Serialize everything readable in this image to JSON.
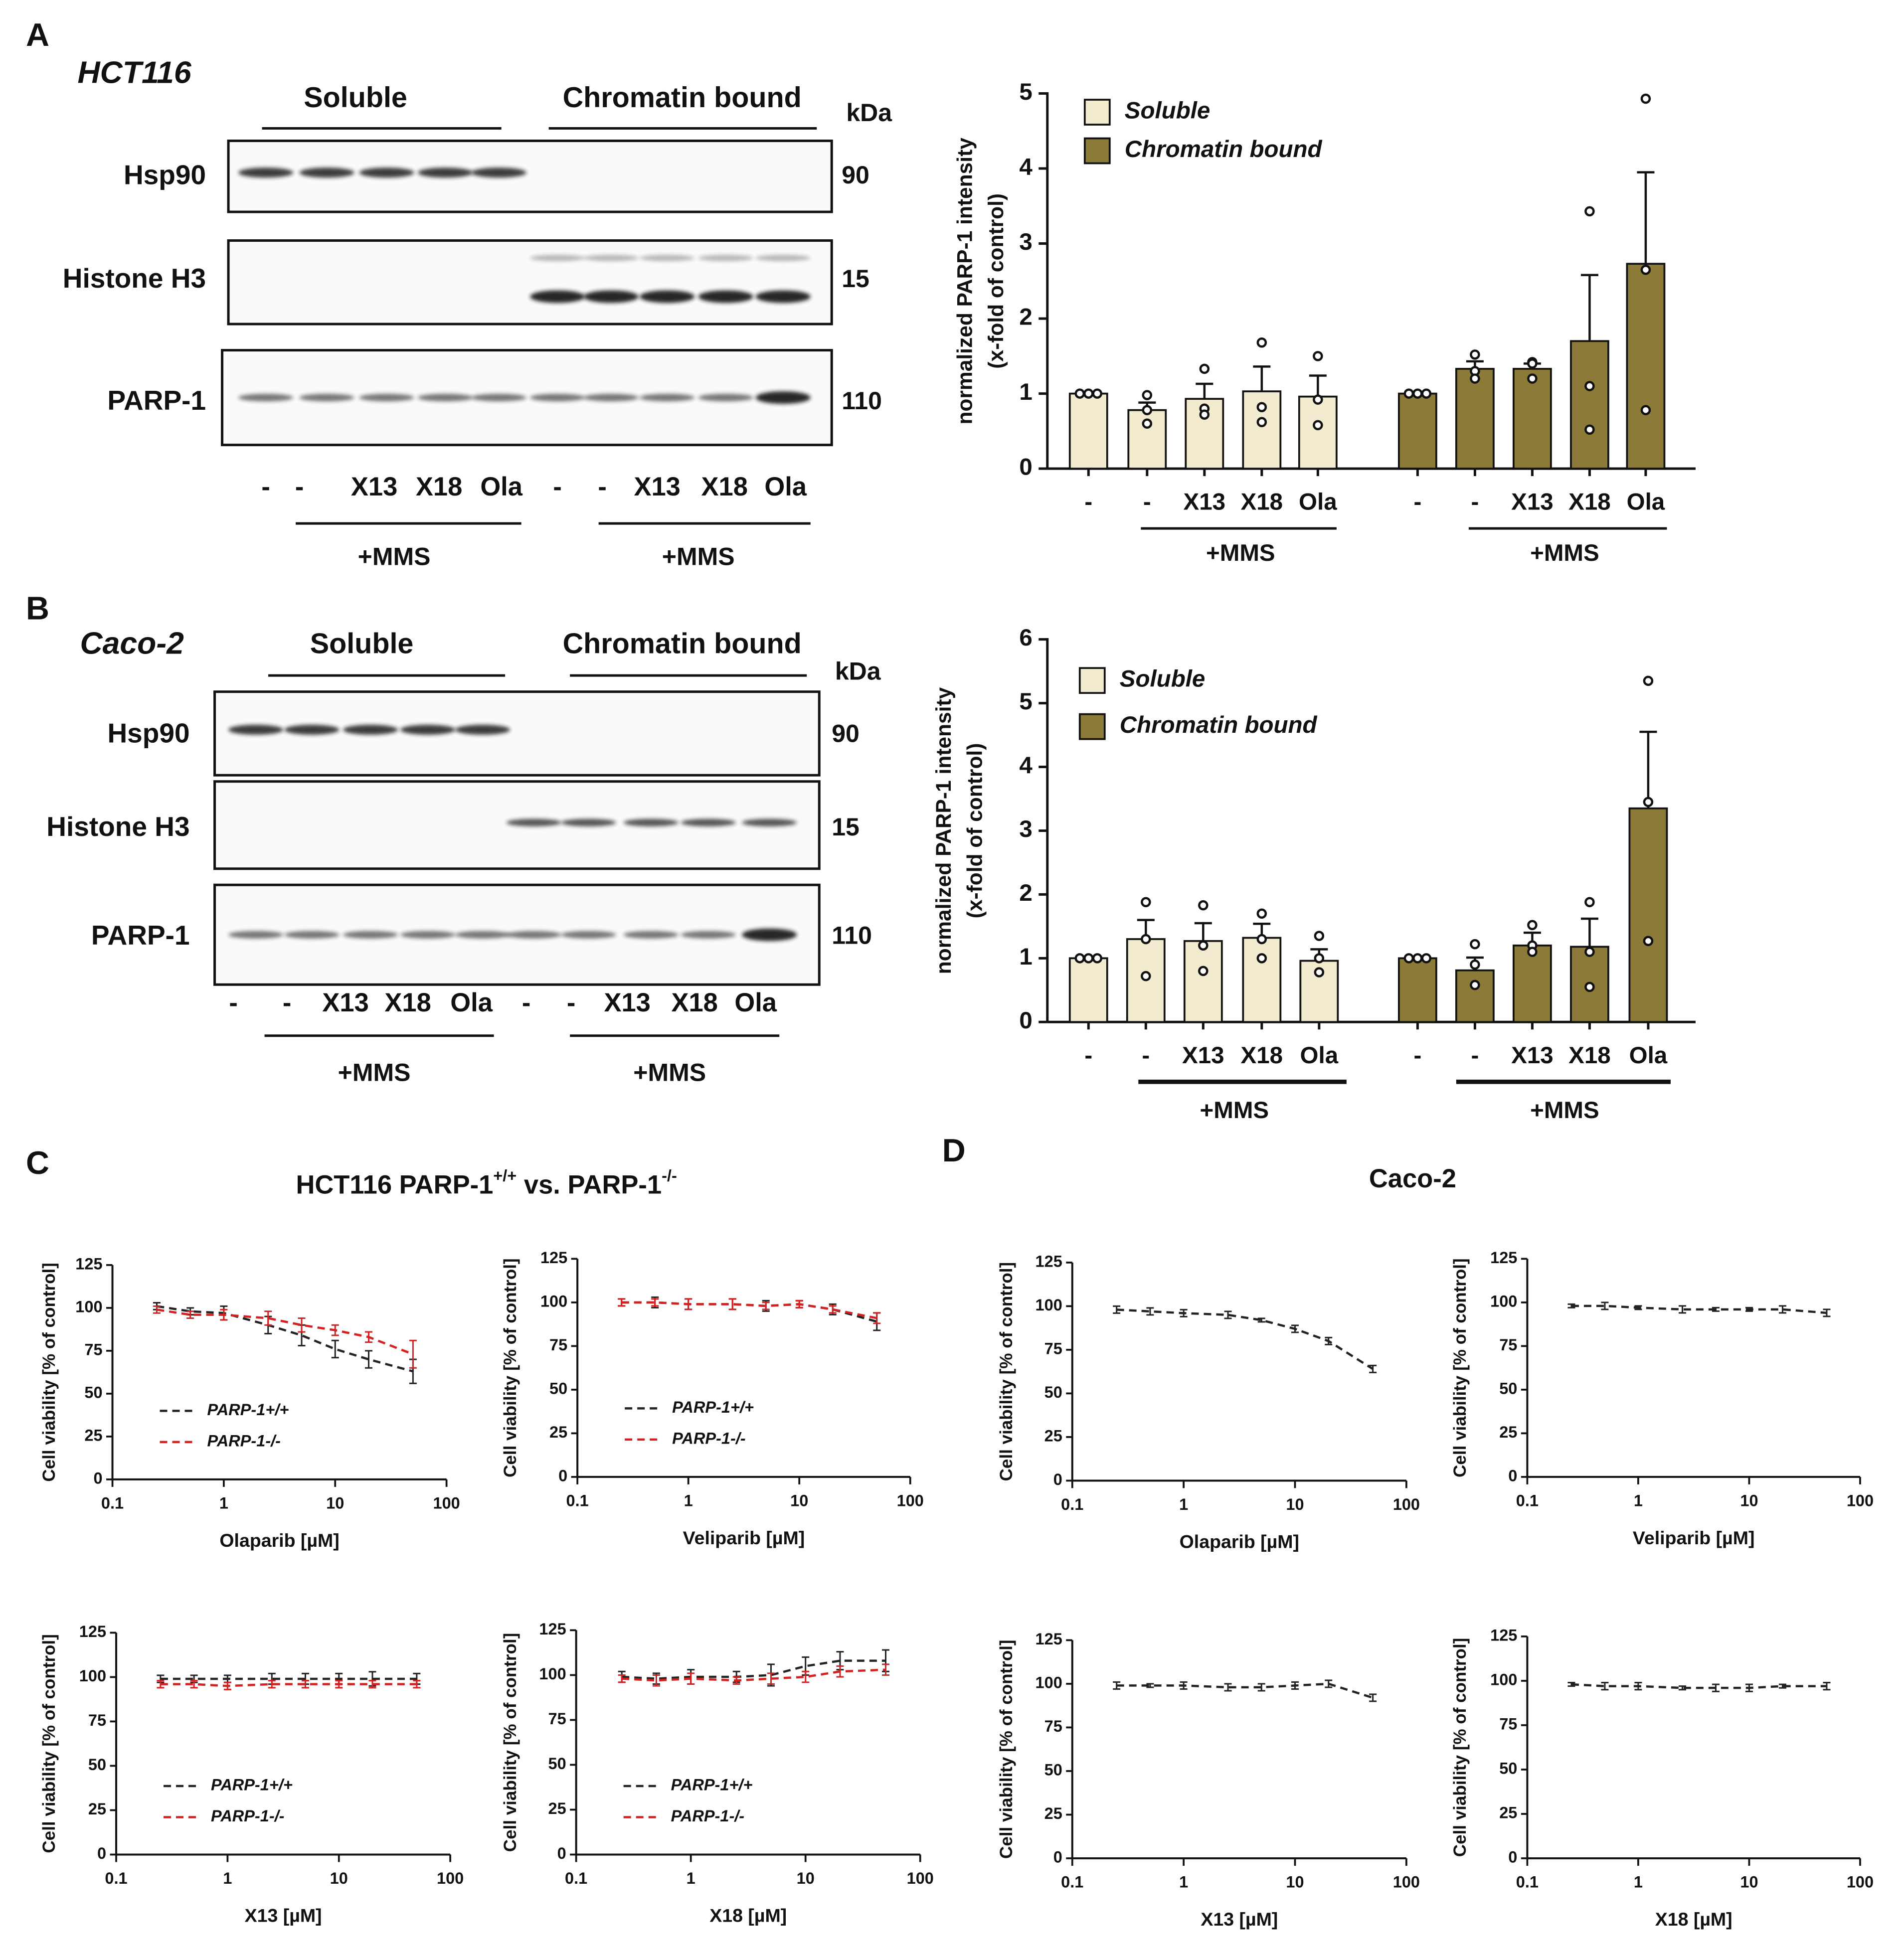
{
  "panel_labels": [
    "A",
    "B",
    "C",
    "D"
  ],
  "sections": [
    {
      "parts": [
        "HCT116 PARP-1",
        "+/+",
        " vs. PARP-1",
        "-/-"
      ]
    },
    {
      "parts": [
        "Caco-2"
      ]
    }
  ],
  "blots": [
    {
      "cell_line": "HCT116",
      "groups": [
        "Soluble",
        "Chromatin bound"
      ],
      "unit": "kDa",
      "rows": [
        {
          "name": "Hsp90",
          "kda": "90"
        },
        {
          "name": "Histone H3",
          "kda": "15"
        },
        {
          "name": "PARP-1",
          "kda": "110"
        }
      ],
      "lanes": [
        "-",
        "-",
        "X13",
        "X18",
        "Ola",
        "-",
        "-",
        "X13",
        "X18",
        "Ola"
      ],
      "treatment": [
        "+MMS",
        "+MMS"
      ]
    },
    {
      "cell_line": "Caco-2",
      "groups": [
        "Soluble",
        "Chromatin bound"
      ],
      "unit": "kDa",
      "rows": [
        {
          "name": "Hsp90",
          "kda": "90"
        },
        {
          "name": "Histone H3",
          "kda": "15"
        },
        {
          "name": "PARP-1",
          "kda": "110"
        }
      ],
      "lanes": [
        "-",
        "-",
        "X13",
        "X18",
        "Ola",
        "-",
        "-",
        "X13",
        "X18",
        "Ola"
      ],
      "treatment": [
        "+MMS",
        "+MMS"
      ]
    }
  ],
  "chart_data": [
    {
      "type": "bar",
      "ylabel": [
        "normalized PARP-1 intensity",
        "(x-fold of control)"
      ],
      "categories": [
        "-",
        "-",
        "X13",
        "X18",
        "Ola",
        "-",
        "-",
        "X13",
        "X18",
        "Ola"
      ],
      "annotations": [
        "+MMS",
        "+MMS"
      ],
      "ylim": [
        0,
        5
      ],
      "yticks": [
        0,
        1,
        2,
        3,
        4,
        5
      ],
      "legend": "upper left",
      "series": [
        {
          "name": "Soluble",
          "color": "#f2ebd0",
          "values": [
            1,
            0.78,
            0.93,
            1.03,
            0.96,
            null,
            null,
            null,
            null,
            null
          ],
          "errors": [
            0,
            0.1,
            0.2,
            0.33,
            0.28,
            null,
            null,
            null,
            null,
            null
          ],
          "points": [
            [
              1,
              1,
              1
            ],
            [
              0.98,
              0.78,
              0.6
            ],
            [
              1.33,
              0.8,
              0.72
            ],
            [
              1.68,
              0.82,
              0.62
            ],
            [
              1.5,
              0.92,
              0.58
            ],
            null,
            null,
            null,
            null,
            null
          ]
        },
        {
          "name": "Chromatin bound",
          "color": "#8c7a38",
          "values": [
            null,
            null,
            null,
            null,
            null,
            1,
            1.33,
            1.33,
            1.7,
            2.73
          ],
          "errors": [
            null,
            null,
            null,
            null,
            null,
            0,
            0.1,
            0.07,
            0.88,
            1.22
          ],
          "points": [
            null,
            null,
            null,
            null,
            null,
            [
              1,
              1,
              1
            ],
            [
              1.52,
              1.3,
              1.2
            ],
            [
              1.42,
              1.4,
              1.2
            ],
            [
              3.43,
              1.1,
              0.52
            ],
            [
              4.93,
              2.65,
              0.78
            ]
          ]
        }
      ]
    },
    {
      "type": "bar",
      "ylabel": [
        "normalized PARP-1 intensity",
        "(x-fold of control)"
      ],
      "categories": [
        "-",
        "-",
        "X13",
        "X18",
        "Ola",
        "-",
        "-",
        "X13",
        "X18",
        "Ola"
      ],
      "annotations": [
        "+MMS",
        "+MMS"
      ],
      "ylim": [
        0,
        6
      ],
      "yticks": [
        0,
        1,
        2,
        3,
        4,
        5,
        6
      ],
      "legend": "upper left",
      "series": [
        {
          "name": "Soluble",
          "color": "#f2ebd0",
          "values": [
            1,
            1.3,
            1.27,
            1.32,
            0.96,
            null,
            null,
            null,
            null,
            null
          ],
          "errors": [
            0,
            0.3,
            0.28,
            0.22,
            0.18,
            null,
            null,
            null,
            null,
            null
          ],
          "points": [
            [
              1,
              1,
              1
            ],
            [
              1.88,
              1.3,
              0.72
            ],
            [
              1.83,
              1.2,
              0.8
            ],
            [
              1.7,
              1.3,
              1.0
            ],
            [
              1.35,
              1.0,
              0.78
            ],
            null,
            null,
            null,
            null,
            null
          ]
        },
        {
          "name": "Chromatin bound",
          "color": "#8c7a38",
          "values": [
            null,
            null,
            null,
            null,
            null,
            1,
            0.81,
            1.2,
            1.18,
            3.35
          ],
          "errors": [
            null,
            null,
            null,
            null,
            null,
            0,
            0.2,
            0.2,
            0.44,
            1.2
          ],
          "points": [
            null,
            null,
            null,
            null,
            null,
            [
              1,
              1,
              1
            ],
            [
              1.22,
              0.9,
              0.58
            ],
            [
              1.52,
              1.2,
              1.1
            ],
            [
              1.88,
              1.1,
              0.55
            ],
            [
              5.35,
              3.45,
              1.27
            ]
          ]
        }
      ]
    },
    {
      "type": "line",
      "xlabel": "Olaparib [µM]",
      "ylabel": "Cell viability [% of control]",
      "xscale": "log",
      "xlim": [
        0.1,
        100
      ],
      "xticks": [
        0.1,
        1,
        10,
        100
      ],
      "ylim": [
        0,
        125
      ],
      "yticks": [
        0,
        25,
        50,
        75,
        100,
        125
      ],
      "legend": "lower left",
      "x": [
        0.25,
        0.5,
        1,
        2.5,
        5,
        10,
        20,
        50
      ],
      "series": [
        {
          "name": "PARP-1+/+",
          "color": "#222222",
          "values": [
            101,
            98,
            97,
            90,
            84,
            76,
            70,
            63
          ],
          "errors": [
            2,
            2,
            4,
            5,
            6,
            5,
            5,
            7
          ]
        },
        {
          "name": "PARP-1-/-",
          "color": "#d42020",
          "values": [
            99,
            96,
            96,
            94,
            90,
            87,
            83,
            73
          ],
          "errors": [
            2,
            2,
            3,
            4,
            4,
            3,
            3,
            8
          ]
        }
      ]
    },
    {
      "type": "line",
      "xlabel": "Veliparib [µM]",
      "ylabel": "Cell viability [% of control]",
      "xscale": "log",
      "xlim": [
        0.1,
        100
      ],
      "xticks": [
        0.1,
        1,
        10,
        100
      ],
      "ylim": [
        0,
        125
      ],
      "yticks": [
        0,
        25,
        50,
        75,
        100,
        125
      ],
      "legend": "lower left",
      "x": [
        0.25,
        0.5,
        1,
        2.5,
        5,
        10,
        20,
        50
      ],
      "series": [
        {
          "name": "PARP-1+/+",
          "color": "#222222",
          "values": [
            100,
            100,
            99,
            99,
            98,
            99,
            96,
            89
          ],
          "errors": [
            2,
            3,
            3,
            3,
            3,
            2,
            3,
            5
          ]
        },
        {
          "name": "PARP-1-/-",
          "color": "#d42020",
          "values": [
            100,
            100,
            99,
            99,
            98,
            99,
            96,
            91
          ],
          "errors": [
            2,
            2,
            3,
            3,
            2,
            2,
            2,
            3
          ]
        }
      ]
    },
    {
      "type": "line",
      "xlabel": "X13 [µM]",
      "ylabel": "Cell viability [% of control]",
      "xscale": "log",
      "xlim": [
        0.1,
        100
      ],
      "xticks": [
        0.1,
        1,
        10,
        100
      ],
      "ylim": [
        0,
        125
      ],
      "yticks": [
        0,
        25,
        50,
        75,
        100,
        125
      ],
      "legend": "lower left",
      "x": [
        0.25,
        0.5,
        1,
        2.5,
        5,
        10,
        20,
        50
      ],
      "series": [
        {
          "name": "PARP-1+/+",
          "color": "#222222",
          "values": [
            99,
            99,
            99,
            99,
            99,
            99,
            99,
            99
          ],
          "errors": [
            2,
            2,
            2,
            3,
            3,
            3,
            4,
            3
          ]
        },
        {
          "name": "PARP-1-/-",
          "color": "#d42020",
          "values": [
            96,
            96,
            95,
            96,
            96,
            96,
            96,
            96
          ],
          "errors": [
            2,
            2,
            2,
            2,
            2,
            2,
            2,
            2
          ]
        }
      ]
    },
    {
      "type": "line",
      "xlabel": "X18 [µM]",
      "ylabel": "Cell viability [% of control]",
      "xscale": "log",
      "xlim": [
        0.1,
        100
      ],
      "xticks": [
        0.1,
        1,
        10,
        100
      ],
      "ylim": [
        0,
        125
      ],
      "yticks": [
        0,
        25,
        50,
        75,
        100,
        125
      ],
      "legend": "lower left",
      "x": [
        0.25,
        0.5,
        1,
        2.5,
        5,
        10,
        20,
        50
      ],
      "series": [
        {
          "name": "PARP-1+/+",
          "color": "#222222",
          "values": [
            99,
            98,
            99,
            99,
            100,
            105,
            108,
            108
          ],
          "errors": [
            3,
            3,
            4,
            3,
            6,
            5,
            5,
            6
          ]
        },
        {
          "name": "PARP-1-/-",
          "color": "#d42020",
          "values": [
            98,
            97,
            98,
            97,
            98,
            99,
            102,
            103
          ],
          "errors": [
            2,
            3,
            3,
            2,
            3,
            3,
            3,
            3
          ]
        }
      ]
    },
    {
      "type": "line",
      "xlabel": "Olaparib [µM]",
      "ylabel": "Cell viability [% of control]",
      "xscale": "log",
      "xlim": [
        0.1,
        100
      ],
      "xticks": [
        0.1,
        1,
        10,
        100
      ],
      "ylim": [
        0,
        125
      ],
      "yticks": [
        0,
        25,
        50,
        75,
        100,
        125
      ],
      "x": [
        0.25,
        0.5,
        1,
        2.5,
        5,
        10,
        20,
        50
      ],
      "series": [
        {
          "color": "#222222",
          "values": [
            98,
            97,
            96,
            95,
            92,
            87,
            80,
            64
          ],
          "errors": [
            2,
            2,
            2,
            2,
            1,
            2,
            2,
            2
          ]
        }
      ]
    },
    {
      "type": "line",
      "xlabel": "Veliparib [µM]",
      "ylabel": "Cell viability [% of control]",
      "xscale": "log",
      "xlim": [
        0.1,
        100
      ],
      "xticks": [
        0.1,
        1,
        10,
        100
      ],
      "ylim": [
        0,
        125
      ],
      "yticks": [
        0,
        25,
        50,
        75,
        100,
        125
      ],
      "x": [
        0.25,
        0.5,
        1,
        2.5,
        5,
        10,
        20,
        50
      ],
      "series": [
        {
          "color": "#222222",
          "values": [
            98,
            98,
            97,
            96,
            96,
            96,
            96,
            94
          ],
          "errors": [
            1,
            2,
            1,
            2,
            1,
            1,
            2,
            2
          ]
        }
      ]
    },
    {
      "type": "line",
      "xlabel": "X13 [µM]",
      "ylabel": "Cell viability [% of control]",
      "xscale": "log",
      "xlim": [
        0.1,
        100
      ],
      "xticks": [
        0.1,
        1,
        10,
        100
      ],
      "ylim": [
        0,
        125
      ],
      "yticks": [
        0,
        25,
        50,
        75,
        100,
        125
      ],
      "x": [
        0.25,
        0.5,
        1,
        2.5,
        5,
        10,
        20,
        50
      ],
      "series": [
        {
          "color": "#222222",
          "values": [
            99,
            99,
            99,
            98,
            98,
            99,
            100,
            92
          ],
          "errors": [
            2,
            1,
            2,
            2,
            2,
            2,
            2,
            2
          ]
        }
      ]
    },
    {
      "type": "line",
      "xlabel": "X18 [µM]",
      "ylabel": "Cell viability [% of control]",
      "xscale": "log",
      "xlim": [
        0.1,
        100
      ],
      "xticks": [
        0.1,
        1,
        10,
        100
      ],
      "ylim": [
        0,
        125
      ],
      "yticks": [
        0,
        25,
        50,
        75,
        100,
        125
      ],
      "x": [
        0.25,
        0.5,
        1,
        2.5,
        5,
        10,
        20,
        50
      ],
      "series": [
        {
          "color": "#222222",
          "values": [
            98,
            97,
            97,
            96,
            96,
            96,
            97,
            97
          ],
          "errors": [
            1,
            2,
            2,
            1,
            2,
            2,
            1,
            2
          ]
        }
      ]
    }
  ]
}
